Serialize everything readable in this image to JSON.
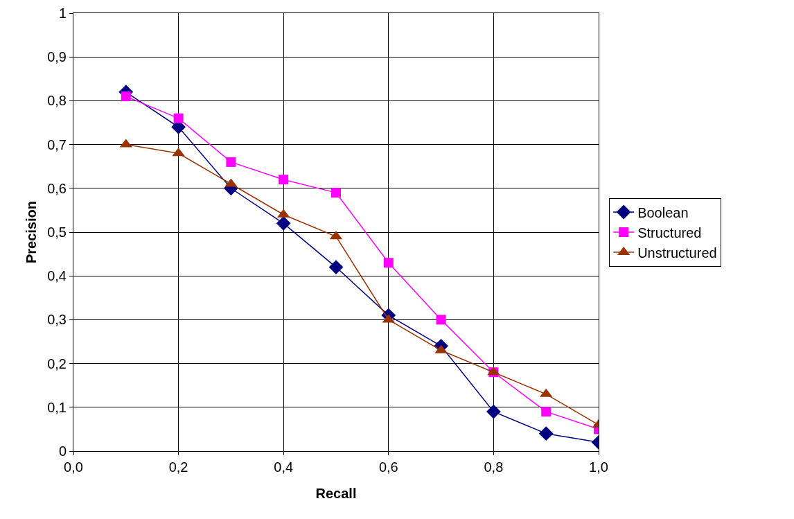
{
  "chart_data": {
    "type": "line",
    "xlabel": "Recall",
    "ylabel": "Precision",
    "x": [
      0.1,
      0.2,
      0.3,
      0.4,
      0.5,
      0.6,
      0.7,
      0.8,
      0.9,
      1.0
    ],
    "series": [
      {
        "name": "Boolean",
        "color": "#000080",
        "marker": "diamond",
        "values": [
          0.82,
          0.74,
          0.6,
          0.52,
          0.42,
          0.31,
          0.24,
          0.09,
          0.04,
          0.02
        ]
      },
      {
        "name": "Structured",
        "color": "#ff00ff",
        "marker": "square",
        "values": [
          0.81,
          0.76,
          0.66,
          0.62,
          0.59,
          0.43,
          0.3,
          0.18,
          0.09,
          0.05
        ]
      },
      {
        "name": "Unstructured",
        "color": "#993300",
        "marker": "triangle",
        "values": [
          0.7,
          0.68,
          0.61,
          0.54,
          0.49,
          0.3,
          0.23,
          0.18,
          0.13,
          0.06
        ]
      }
    ],
    "xlim": [
      0,
      1
    ],
    "xticks": [
      {
        "value": 0,
        "label": "0,0"
      },
      {
        "value": 0.2,
        "label": "0,2"
      },
      {
        "value": 0.4,
        "label": "0,4"
      },
      {
        "value": 0.6,
        "label": "0,6"
      },
      {
        "value": 0.8,
        "label": "0,8"
      },
      {
        "value": 1,
        "label": "1,0"
      }
    ],
    "ylim": [
      0,
      1
    ],
    "yticks": [
      0,
      {
        "value": 0.1,
        "label": "0,1"
      },
      {
        "value": 0.2,
        "label": "0,2"
      },
      {
        "value": 0.3,
        "label": "0,3"
      },
      {
        "value": 0.4,
        "label": "0,4"
      },
      {
        "value": 0.5,
        "label": "0,5"
      },
      {
        "value": 0.6,
        "label": "0,6"
      },
      {
        "value": 0.7,
        "label": "0,7"
      },
      {
        "value": 0.8,
        "label": "0,8"
      },
      {
        "value": 0.9,
        "label": "0,9"
      },
      1
    ],
    "grid": true,
    "legend": "right",
    "line_style": "solid"
  }
}
